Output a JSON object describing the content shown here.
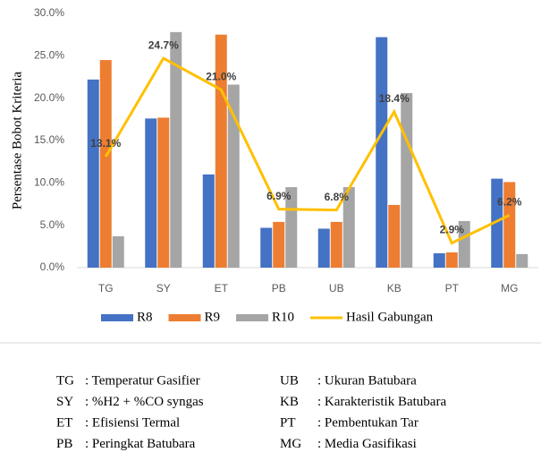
{
  "chart_data": {
    "type": "bar",
    "y_label": "Persentase Bobot Kriteria",
    "categories": [
      "TG",
      "SY",
      "ET",
      "PB",
      "UB",
      "KB",
      "PT",
      "MG"
    ],
    "series": [
      {
        "name": "R8",
        "color": "#4472c4",
        "values": [
          22.2,
          17.6,
          11.0,
          4.7,
          4.6,
          27.2,
          1.7,
          10.5
        ]
      },
      {
        "name": "R9",
        "color": "#ed7d31",
        "values": [
          24.5,
          17.7,
          27.5,
          5.4,
          5.4,
          7.4,
          1.8,
          10.1
        ]
      },
      {
        "name": "R10",
        "color": "#a5a5a5",
        "values": [
          3.7,
          27.8,
          21.6,
          9.5,
          9.5,
          20.6,
          5.5,
          1.6
        ]
      },
      {
        "name": "Hasil Gabungan",
        "type": "line",
        "color": "#ffc000",
        "values": [
          13.1,
          24.7,
          21.0,
          6.9,
          6.8,
          18.4,
          2.9,
          6.2
        ],
        "value_labels": [
          "13.1%",
          "24.7%",
          "21.0%",
          "6.9%",
          "6.8%",
          "18.4%",
          "2.9%",
          "6.2%"
        ]
      }
    ],
    "ylim": [
      0,
      30
    ],
    "yticks": [
      {
        "value": 0,
        "label": "0.0%"
      },
      {
        "value": 5,
        "label": "5.0%"
      },
      {
        "value": 10,
        "label": "10.0%"
      },
      {
        "value": 15,
        "label": "15.0%"
      },
      {
        "value": 20,
        "label": "20.0%"
      },
      {
        "value": 25,
        "label": "25.0%"
      },
      {
        "value": 30,
        "label": "30.0%"
      }
    ],
    "grid": false,
    "legend": "bottom"
  },
  "glossary": [
    {
      "abbr": "TG",
      "text": ": Temperatur Gasifier"
    },
    {
      "abbr": "SY",
      "text": ": %H2 + %CO syngas"
    },
    {
      "abbr": "ET",
      "text": ": Efisiensi Termal"
    },
    {
      "abbr": "PB",
      "text": ": Peringkat Batubara"
    },
    {
      "abbr": "UB",
      "text": ": Ukuran Batubara"
    },
    {
      "abbr": "KB",
      "text": ": Karakteristik Batubara"
    },
    {
      "abbr": "PT",
      "text": ": Pembentukan Tar"
    },
    {
      "abbr": "MG",
      "text": ": Media Gasifikasi"
    }
  ]
}
